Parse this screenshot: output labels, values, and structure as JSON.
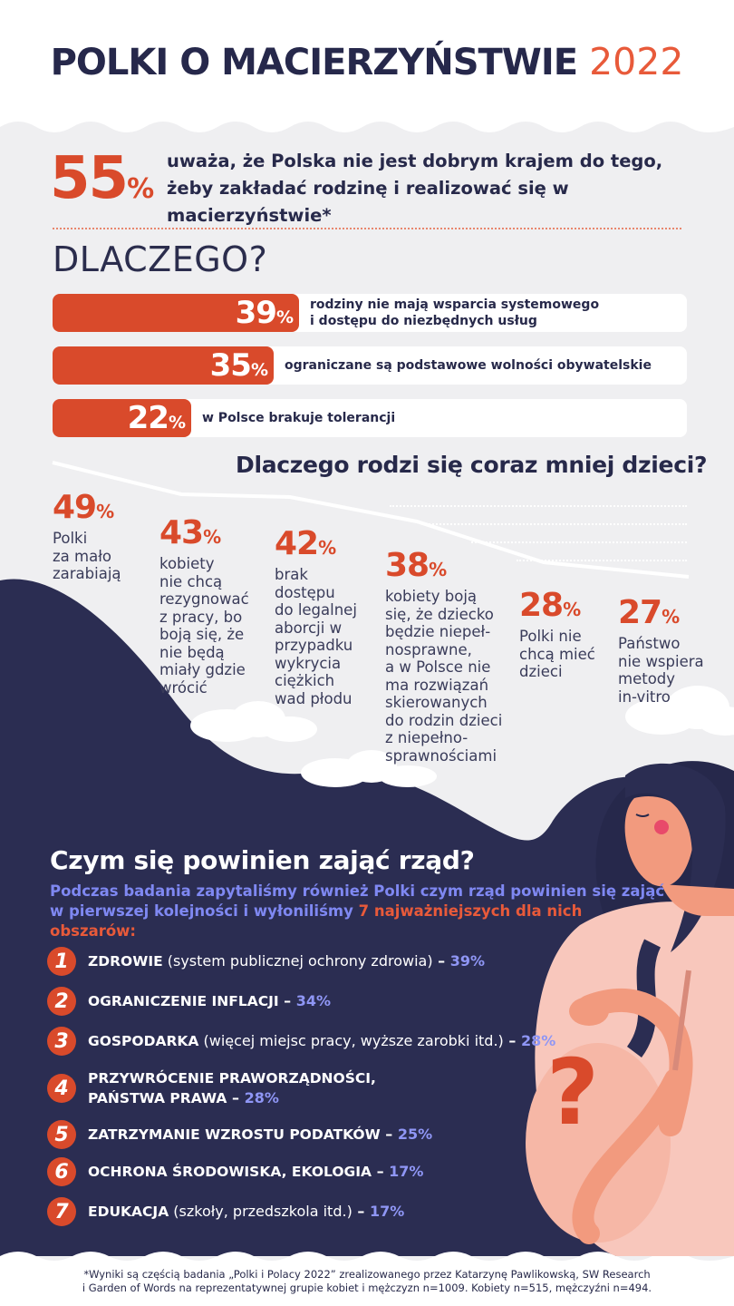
{
  "header": {
    "title": "POLKI O MACIERZYŃSTWIE",
    "year": "2022"
  },
  "headline": {
    "value": "55",
    "unit": "%",
    "text": "uważa, że Polska nie jest dobrym krajem do tego, żeby zakładać rodzinę i realizować się w macierzyństwie*"
  },
  "why": {
    "heading": "DLACZEGO?",
    "bars": [
      {
        "value": 39,
        "label": "rodziny nie mają wsparcia systemowego\ni dostępu do niezbędnych usług"
      },
      {
        "value": 35,
        "label": "ograniczane są podstawowe wolności obywatelskie"
      },
      {
        "value": 22,
        "label": "w Polsce brakuje tolerancji"
      }
    ]
  },
  "fewer_children": {
    "heading": "Dlaczego rodzi się coraz mniej dzieci?",
    "stats": [
      {
        "value": "49",
        "text": "Polki\nza mało\nzarabiają"
      },
      {
        "value": "43",
        "text": "kobiety\nnie chcą\nrezygnować\nz pracy, bo\nboją się, że\nnie będą\nmiały gdzie\nwrócić"
      },
      {
        "value": "42",
        "text": "brak\ndostępu\ndo legalnej\naborcji w\nprzypadku\nwykrycia\nciężkich\nwad płodu"
      },
      {
        "value": "38",
        "text": "kobiety boją\nsię, że dziecko\nbędzie niepeł-\nnosprawne,\na w Polsce nie\nma rozwiązań\nskierowanych\ndo rodzin dzieci\nz niepełno-\nsprawnościami"
      },
      {
        "value": "28",
        "text": "Polki nie\nchcą mieć\ndzieci"
      },
      {
        "value": "27",
        "text": "Państwo\nnie wspiera\nmetody\nin-vitro"
      }
    ],
    "unit": "%"
  },
  "government": {
    "heading": "Czym się powinien zająć rząd?",
    "intro_a": "Podczas badania zapytaliśmy również Polki czym rząd powinien się zająć w pierwszej kolejności i wyłoniliśmy ",
    "intro_b": "7 najważniejszych dla nich obszarów:",
    "items": [
      {
        "n": "1",
        "bold": "ZDROWIE",
        "rest": " (system publicznej ochrony zdrowia)",
        "pct": "39%"
      },
      {
        "n": "2",
        "bold": "OGRANICZENIE INFLACJI",
        "rest": "",
        "pct": "34%"
      },
      {
        "n": "3",
        "bold": "GOSPODARKA",
        "rest": " (więcej miejsc pracy, wyższe zarobki itd.)",
        "pct": "28%"
      },
      {
        "n": "4",
        "bold": "PRZYWRÓCENIE PRAWORZĄDNOŚCI,",
        "bold2": "PAŃSTWA PRAWA",
        "rest": "",
        "pct": "28%"
      },
      {
        "n": "5",
        "bold": "ZATRZYMANIE WZROSTU PODATKÓW",
        "rest": "",
        "pct": "25%"
      },
      {
        "n": "6",
        "bold": "OCHRONA ŚRODOWISKA, EKOLOGIA",
        "rest": "",
        "pct": "17%"
      },
      {
        "n": "7",
        "bold": "EDUKACJA",
        "rest": " (szkoły, przedszkola itd.)",
        "pct": "17%"
      }
    ],
    "dash": " – "
  },
  "footnote": {
    "line1": "*Wyniki są częścią badania „Polki i Polacy 2022” zrealizowanego przez Katarzynę Pawlikowską, SW Research",
    "line2": "i Garden of Words na reprezentatywnej grupie kobiet i mężczyzn n=1009. Kobiety n=515, mężczyźni n=494."
  },
  "illustration": {
    "question_mark": "?"
  },
  "colors": {
    "navy": "#2b2d52",
    "orange": "#d94a2b",
    "grey": "#efeff1",
    "periwinkle": "#8f96f5",
    "skin": "#f6b7a6"
  }
}
